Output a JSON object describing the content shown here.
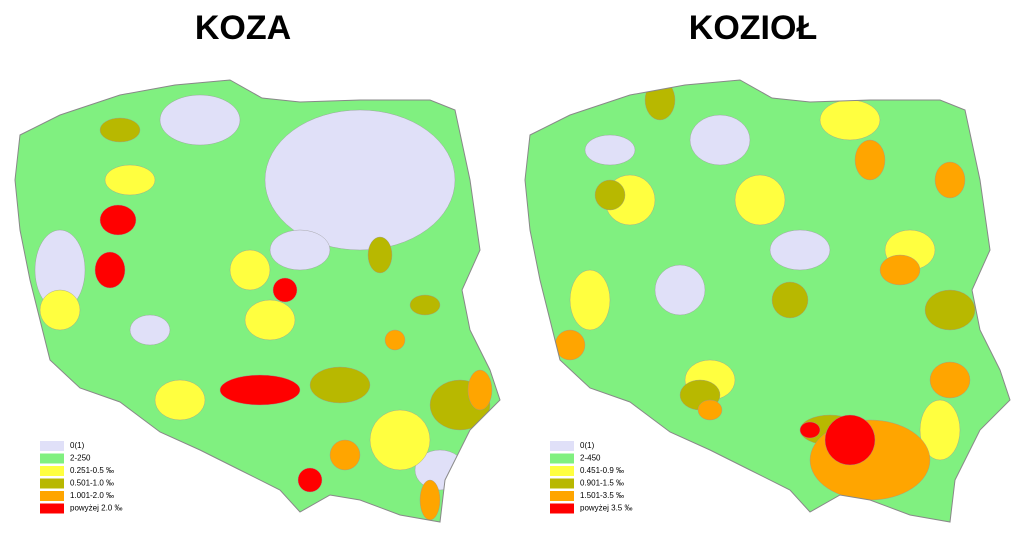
{
  "maps": [
    {
      "title": "KOZA",
      "legend": [
        {
          "label": "0(1)",
          "color": "#e0e0f8"
        },
        {
          "label": "2-250",
          "color": "#80f080"
        },
        {
          "label": "0.251-0.5 ‰",
          "color": "#ffff40"
        },
        {
          "label": "0.501-1.0 ‰",
          "color": "#b8b800"
        },
        {
          "label": "1.001-2.0 ‰",
          "color": "#ffa500"
        },
        {
          "label": "powyżej 2.0 ‰",
          "color": "#ff0000"
        }
      ]
    },
    {
      "title": "KOZIOŁ",
      "legend": [
        {
          "label": "0(1)",
          "color": "#e0e0f8"
        },
        {
          "label": "2-450",
          "color": "#80f080"
        },
        {
          "label": "0.451-0.9 ‰",
          "color": "#ffff40"
        },
        {
          "label": "0.901-1.5 ‰",
          "color": "#b8b800"
        },
        {
          "label": "1.501-3.5 ‰",
          "color": "#ffa500"
        },
        {
          "label": "powyżej 3.5 ‰",
          "color": "#ff0000"
        }
      ]
    }
  ]
}
